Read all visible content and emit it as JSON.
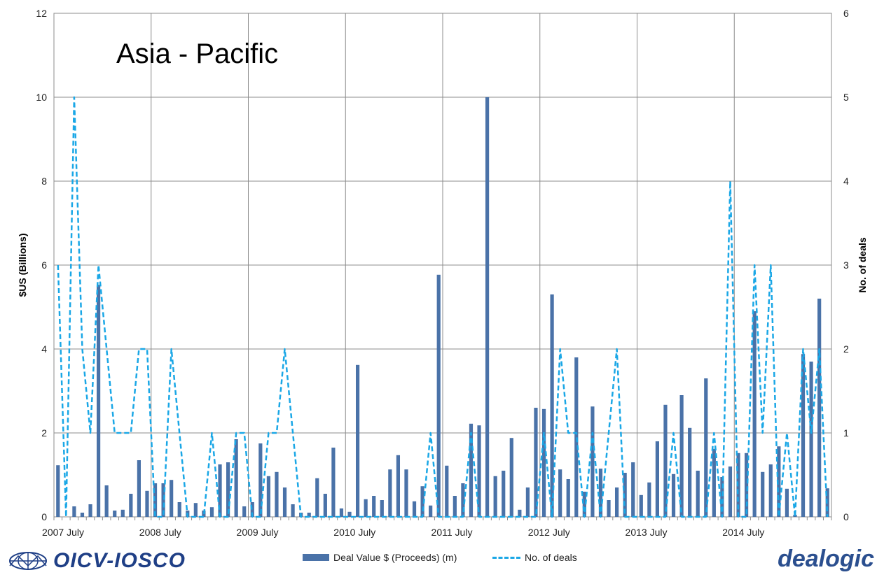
{
  "chart_data": {
    "type": "bar",
    "title": "Asia - Pacific",
    "ylabel_left": "$US (Billions)",
    "ylabel_right": "No. of deals",
    "ylim_left": [
      0,
      12
    ],
    "ylim_right": [
      0,
      6
    ],
    "yticks_left": [
      "0",
      "2",
      "4",
      "6",
      "8",
      "10",
      "12"
    ],
    "yticks_right": [
      "0",
      "1",
      "2",
      "3",
      "4",
      "5",
      "6"
    ],
    "xtick_labels": [
      "2007 July",
      "2008 July",
      "2009 July",
      "2010 July",
      "2011 July",
      "2012 July",
      "2013 July",
      "2014 July"
    ],
    "grid": true,
    "legend_position": "bottom",
    "series": [
      {
        "name": "Deal Value $ (Proceeds) (m)",
        "type": "bar",
        "axis": "left",
        "values": [
          1.23,
          0,
          0.25,
          0.1,
          0.3,
          5.53,
          0.75,
          0.15,
          0.17,
          0.55,
          1.35,
          0.62,
          0.8,
          0.8,
          0.88,
          0.35,
          0.15,
          0.33,
          0.15,
          0.23,
          1.25,
          1.3,
          1.85,
          0.25,
          0.35,
          1.75,
          0.97,
          1.07,
          0.7,
          0.3,
          0.1,
          0.1,
          0.92,
          0.55,
          1.65,
          0.2,
          0.12,
          3.62,
          0.42,
          0.5,
          0.4,
          1.13,
          1.47,
          1.13,
          0.37,
          0.73,
          0.27,
          5.77,
          1.22,
          0.5,
          0.8,
          2.22,
          2.18,
          10.0,
          0.97,
          1.1,
          1.88,
          0.17,
          0.7,
          2.6,
          2.57,
          5.3,
          1.13,
          0.9,
          3.8,
          0.6,
          2.63,
          1.15,
          0.4,
          0.7,
          1.05,
          1.3,
          0.52,
          0.82,
          1.8,
          2.67,
          1.02,
          2.9,
          2.12,
          1.1,
          3.3,
          1.62,
          0.95,
          1.2,
          1.52,
          1.52,
          4.9,
          1.07,
          1.25,
          1.68,
          0.67,
          0.05,
          3.88,
          3.7,
          5.2,
          0.68
        ]
      },
      {
        "name": "No. of deals",
        "type": "line",
        "style": "dashed",
        "axis": "right",
        "values": [
          3,
          0,
          5,
          2,
          1,
          3,
          2,
          1,
          1,
          1,
          2,
          2,
          0,
          0,
          2,
          1,
          0,
          0,
          0,
          1,
          0,
          0,
          1,
          1,
          0,
          0,
          1,
          1,
          2,
          1,
          0,
          0,
          0,
          0,
          0,
          0,
          0,
          0,
          0,
          0,
          0,
          0,
          0,
          0,
          0,
          0,
          1,
          0,
          0,
          0,
          0,
          1,
          0,
          0,
          0,
          0,
          0,
          0,
          0,
          0,
          1,
          0,
          2,
          1,
          1,
          0,
          1,
          0,
          1,
          2,
          0,
          0,
          0,
          0,
          0,
          0,
          1,
          0,
          0,
          0,
          0,
          1,
          0,
          4,
          0,
          0,
          3,
          1,
          3,
          0,
          1,
          0,
          2,
          1,
          2,
          0
        ]
      }
    ],
    "colors": {
      "bar": "#4a72a8",
      "line": "#1aa7e6",
      "grid": "#8c8c8c",
      "title": "#000000"
    }
  },
  "logos": {
    "left": "OICV-IOSCO",
    "right": "dealogic"
  }
}
